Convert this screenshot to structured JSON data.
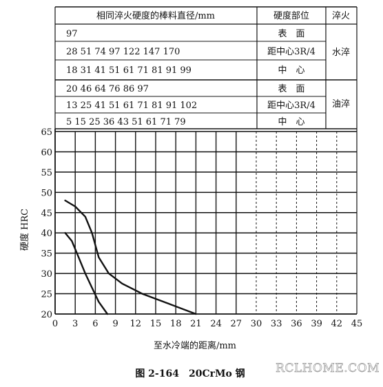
{
  "table": {
    "header": {
      "diameter": "相同淬火硬度的棒料直径/mm",
      "position": "硬度部位",
      "quench": "淬火"
    },
    "groups": [
      {
        "quench": "水淬",
        "rows": [
          {
            "diameters": "97",
            "position": "表　面"
          },
          {
            "diameters": "28 51 74 97 122 147 170",
            "position": "距中心3R/4"
          },
          {
            "diameters": "18 31 41 51 61 71 81 91 99",
            "position": "中　心"
          }
        ]
      },
      {
        "quench": "油淬",
        "rows": [
          {
            "diameters": "20 46 64 76 86 97",
            "position": "表　面"
          },
          {
            "diameters": "13 25 41 51 61 71 81 91 102",
            "position": "距中心3R/4"
          },
          {
            "diameters": "5 15 25 36 43 51 61 71 79",
            "position": "中　心"
          }
        ]
      }
    ]
  },
  "chart_data": {
    "type": "line",
    "xlabel": "至水冷端的距离/mm",
    "ylabel": "硬度 HRC",
    "xlim": [
      0,
      45
    ],
    "ylim": [
      20,
      65
    ],
    "xticks": [
      0,
      3,
      6,
      9,
      12,
      15,
      18,
      21,
      24,
      27,
      30,
      33,
      36,
      39,
      42,
      45
    ],
    "yticks": [
      20,
      25,
      30,
      35,
      40,
      45,
      50,
      55,
      60,
      65
    ],
    "grid": true,
    "series": [
      {
        "x": [
          1.5,
          3,
          4.5,
          5.5,
          6.5,
          8,
          10,
          13,
          17,
          21
        ],
        "y": [
          48,
          46.5,
          44,
          40,
          34,
          30,
          27.5,
          25,
          22.5,
          20
        ]
      },
      {
        "x": [
          1.5,
          2.5,
          3.5,
          4.5,
          5.5,
          6.5,
          7.8
        ],
        "y": [
          40,
          38,
          34,
          30,
          26.5,
          23,
          20
        ]
      }
    ]
  },
  "caption": "图 2-164　20CrMo 钢",
  "watermark": "RCLHOME.COM"
}
